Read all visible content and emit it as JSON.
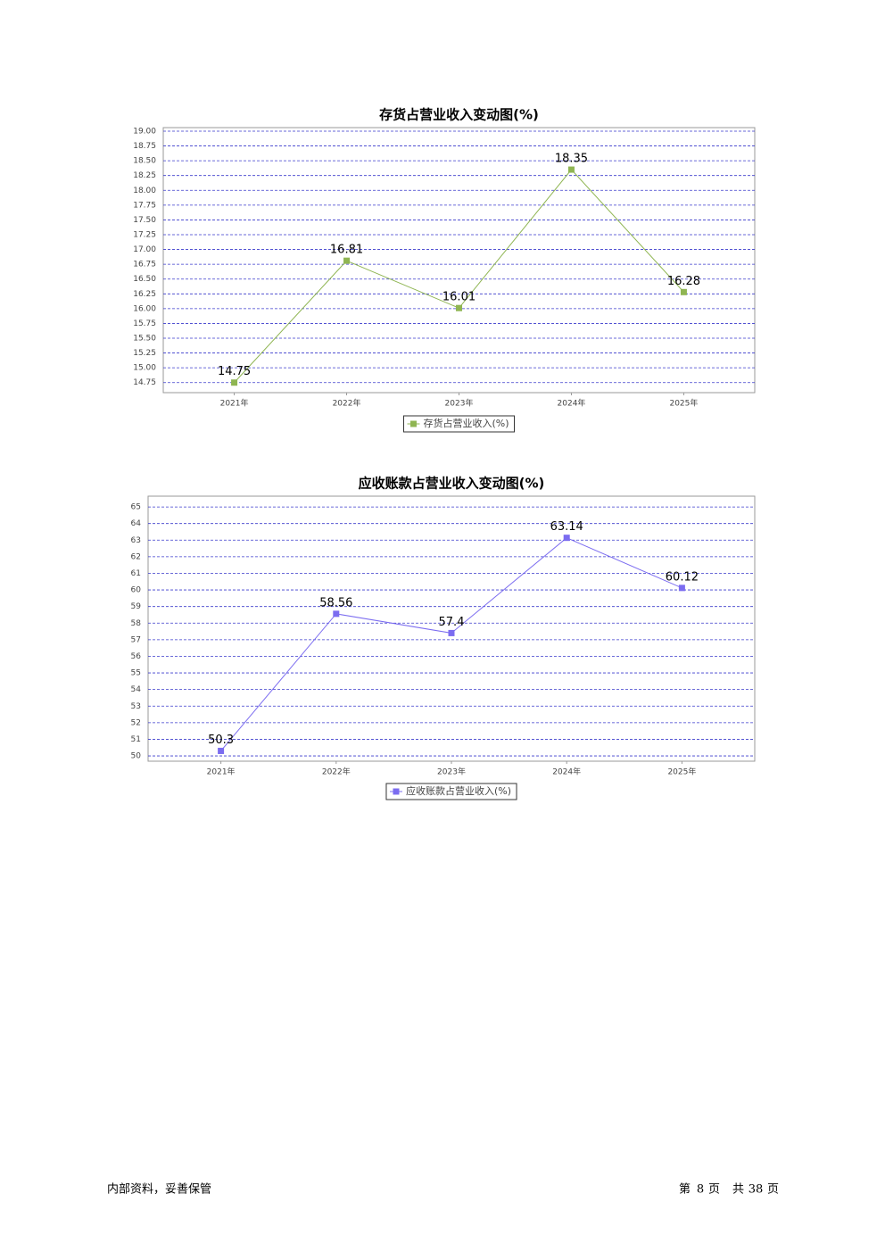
{
  "chart_data": [
    {
      "type": "line",
      "title": "存货占营业收入变动图(%)",
      "categories": [
        "2021年",
        "2022年",
        "2023年",
        "2024年",
        "2025年"
      ],
      "series": [
        {
          "name": "存货占营业收入(%)",
          "color": "#8fb552",
          "values": [
            14.75,
            16.81,
            16.01,
            18.35,
            16.28
          ]
        }
      ],
      "ylim": [
        14.58,
        19.06
      ],
      "yticks": [
        {
          "value": 14.75,
          "label": "14.75"
        },
        {
          "value": 15,
          "label": "15.00"
        },
        {
          "value": 15.25,
          "label": "15.25"
        },
        {
          "value": 15.5,
          "label": "15.50"
        },
        {
          "value": 15.75,
          "label": "15.75"
        },
        {
          "value": 16,
          "label": "16.00"
        },
        {
          "value": 16.25,
          "label": "16.25"
        },
        {
          "value": 16.5,
          "label": "16.50"
        },
        {
          "value": 16.75,
          "label": "16.75"
        },
        {
          "value": 17,
          "label": "17.00"
        },
        {
          "value": 17.25,
          "label": "17.25"
        },
        {
          "value": 17.5,
          "label": "17.50"
        },
        {
          "value": 17.75,
          "label": "17.75"
        },
        {
          "value": 18,
          "label": "18.00"
        },
        {
          "value": 18.25,
          "label": "18.25"
        },
        {
          "value": 18.5,
          "label": "18.50"
        },
        {
          "value": 18.75,
          "label": "18.75"
        },
        {
          "value": 19,
          "label": "19.00"
        }
      ],
      "grid": true,
      "legend": "bottom"
    },
    {
      "type": "line",
      "title": "应收账款占营业收入变动图(%)",
      "categories": [
        "2021年",
        "2022年",
        "2023年",
        "2024年",
        "2025年"
      ],
      "series": [
        {
          "name": "应收账款占营业收入(%)",
          "color": "#7b6cf0",
          "values": [
            50.3,
            58.56,
            57.4,
            63.14,
            60.12
          ]
        }
      ],
      "ylim": [
        49.68,
        65.65
      ],
      "yticks": [
        50,
        51,
        52,
        53,
        54,
        55,
        56,
        57,
        58,
        59,
        60,
        61,
        62,
        63,
        64,
        65
      ],
      "grid": true,
      "legend": "bottom"
    }
  ],
  "footer": {
    "left": "内部资料，妥善保管",
    "page_label": "第",
    "page": "8",
    "page_unit": "页",
    "total_label": "共",
    "total": "38",
    "total_unit": "页"
  }
}
